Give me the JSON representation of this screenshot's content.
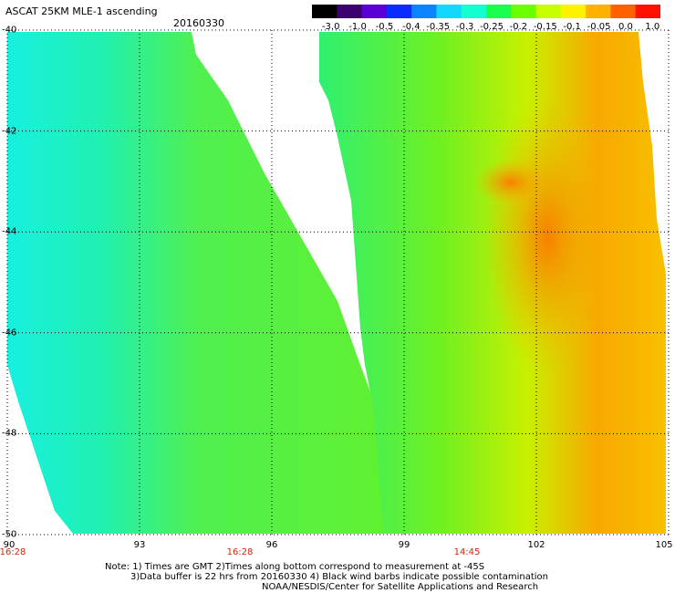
{
  "header": {
    "title": "ASCAT 25KM MLE-1 ascending",
    "date": "20160330"
  },
  "colorbar": {
    "labels": [
      "-3.0",
      "-1.0",
      "-0.5",
      "-0.4",
      "-0.35",
      "-0.3",
      "-0.25",
      "-0.2",
      "-0.15",
      "-0.1",
      "-0.05",
      "0.0",
      "1.0"
    ],
    "colors": [
      "#000000",
      "#3a006e",
      "#5a00d6",
      "#0a2cff",
      "#0a84ff",
      "#12d8ff",
      "#14ffd0",
      "#18ff50",
      "#6cff00",
      "#c8ff00",
      "#fff200",
      "#ffb000",
      "#ff6000",
      "#ff1000"
    ]
  },
  "map": {
    "lat_labels": [
      "-40",
      "-42",
      "-44",
      "-46",
      "-48",
      "-50"
    ],
    "lon_labels": [
      "90",
      "93",
      "96",
      "99",
      "102",
      "105"
    ],
    "time_labels": [
      "16:28",
      "16:28",
      "14:45"
    ]
  },
  "footer": {
    "note1": "Note: 1) Times are GMT 2)Times along bottom correspond to measurement at -45S",
    "note2": "3)Data buffer is 22 hrs from 20160330 4) Black wind barbs indicate possible contamination",
    "note3": "NOAA/NESDIS/Center for Satellite Applications and Research"
  }
}
